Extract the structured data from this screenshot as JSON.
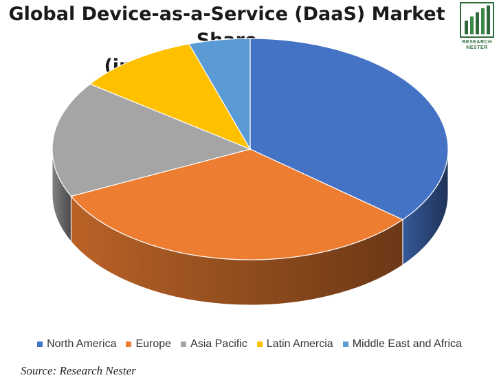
{
  "title": {
    "line1": "Global Device-as-a-Service (DaaS) Market Share",
    "line2": "(in %), By Region, 2030"
  },
  "logo": {
    "line1": "RESEARCH",
    "line2": "NESTER"
  },
  "source": "Source: Research Nester",
  "chart_data": {
    "type": "pie",
    "style": "3d",
    "legend_position": "bottom",
    "categories": [
      "North America",
      "Europe",
      "Asia Pacific",
      "Latin Amercia",
      "Middle East and Africa"
    ],
    "values": [
      36,
      32,
      17,
      10,
      5
    ],
    "colors": [
      "#4472C4",
      "#ED7D31",
      "#A5A5A5",
      "#FFC000",
      "#5B9BD5"
    ]
  }
}
